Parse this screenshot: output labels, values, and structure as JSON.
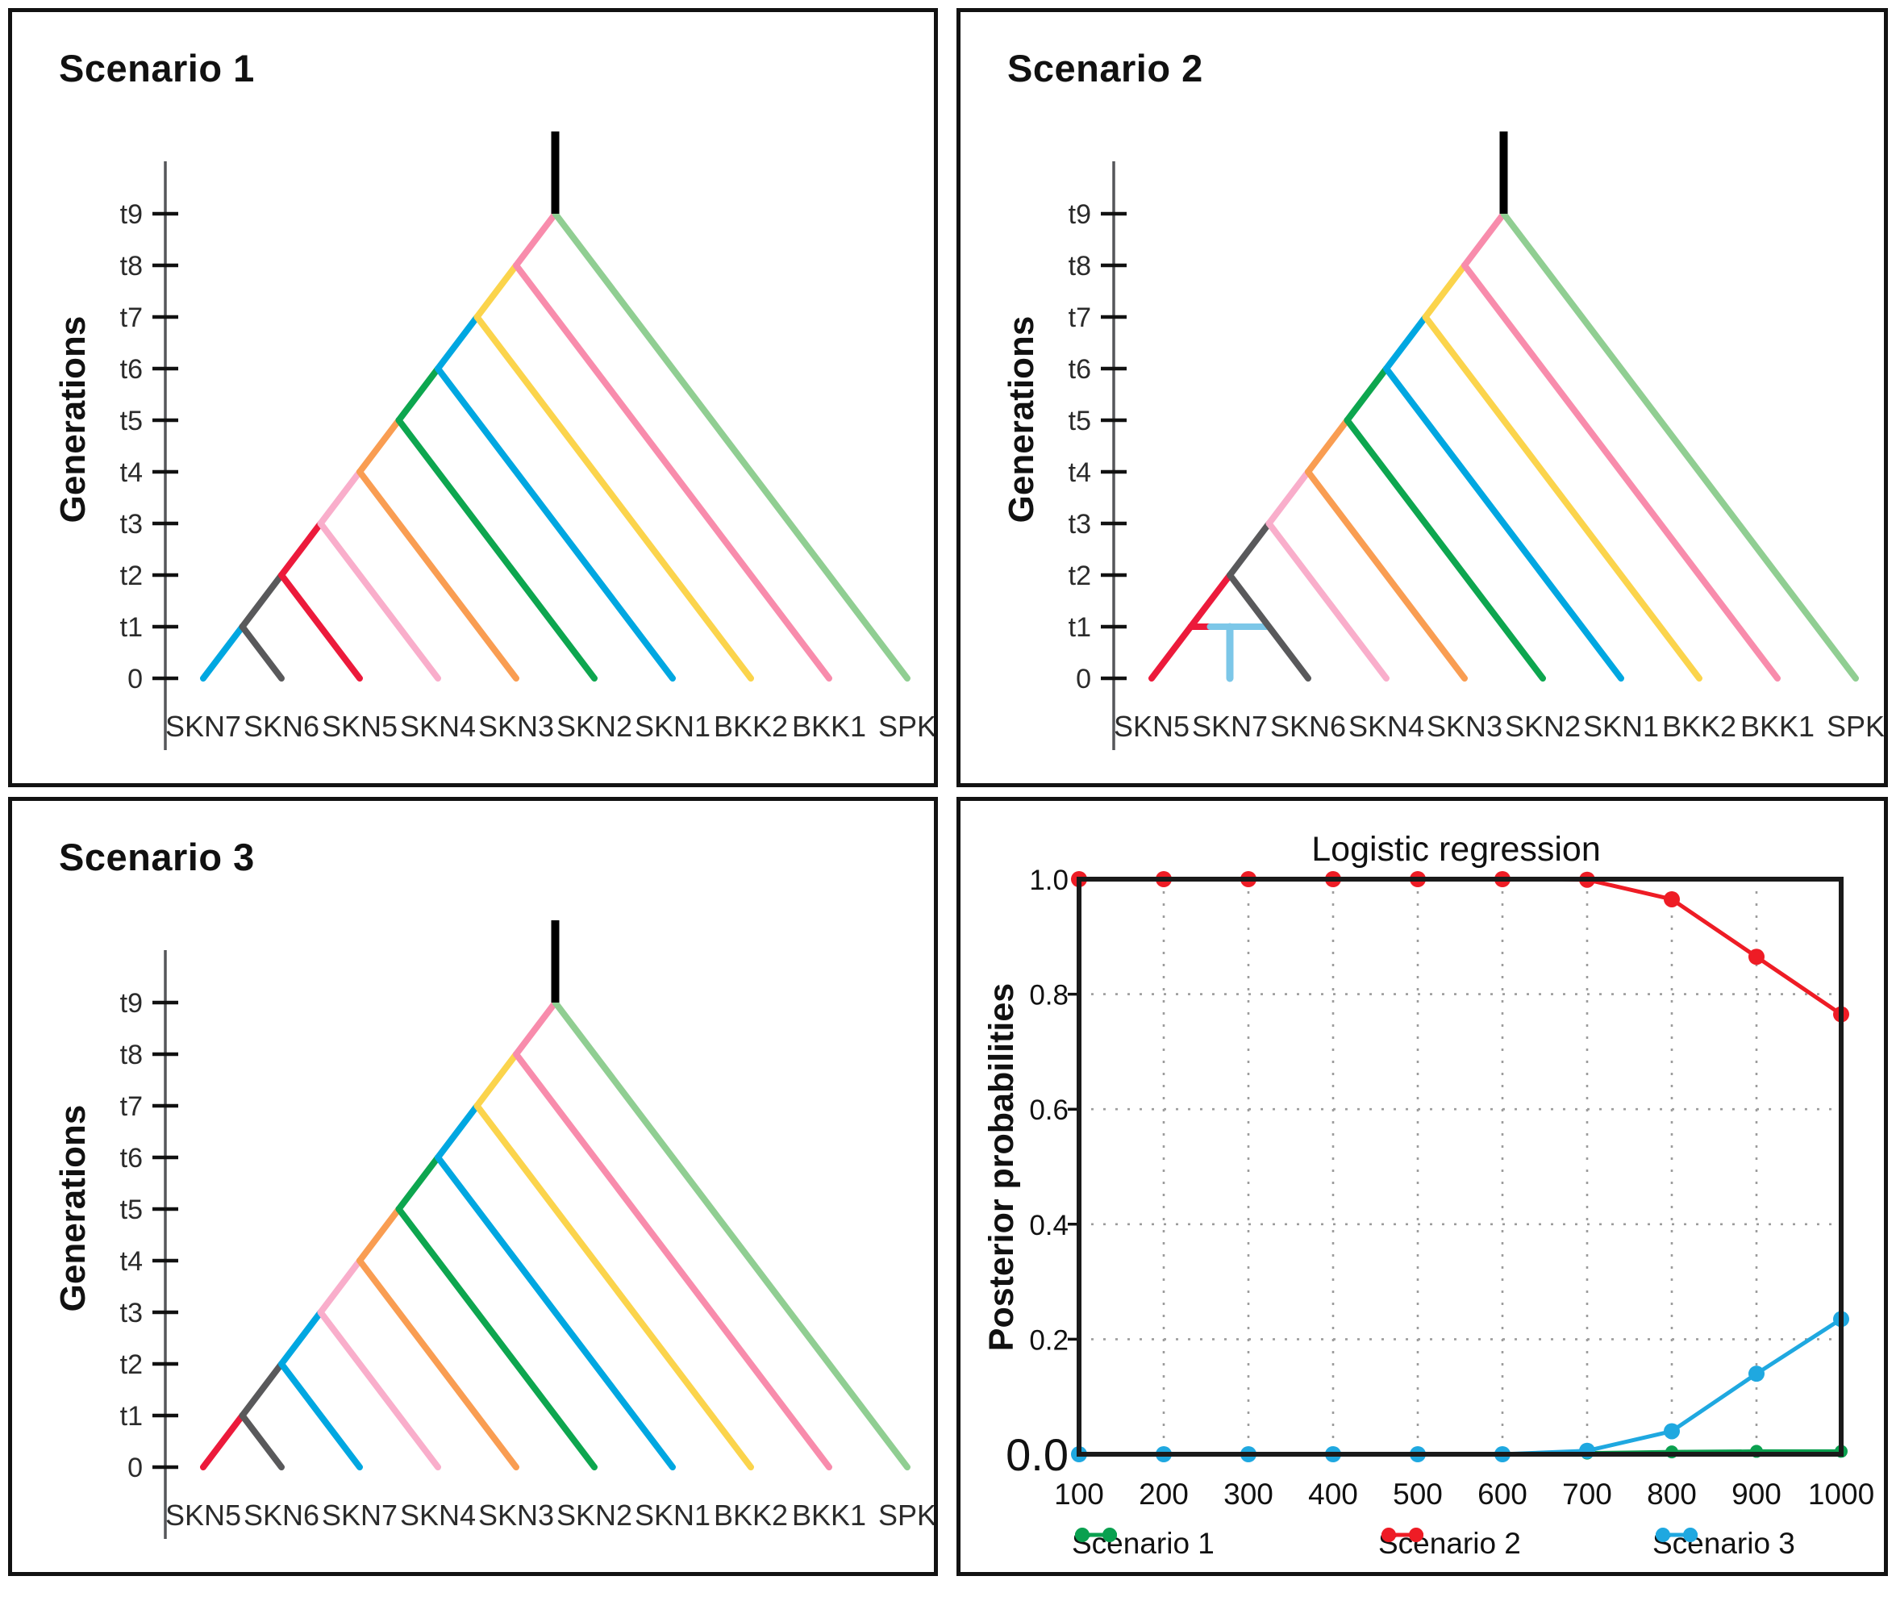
{
  "figure": {
    "background": "#ffffff",
    "description_colors": {
      "axis": "#55565A",
      "tick": "#111111",
      "text": "#2B2B2B",
      "frame": "#1A1A1A",
      "grid": "#9C9C9C",
      "root": "#000000",
      "admixture": "#7CC7E8"
    }
  },
  "population_colors": {
    "SKN7": "#00A7E1",
    "SKN6": "#59595B",
    "SKN5": "#EC1A3B",
    "SKN4": "#F9AECB",
    "SKN3": "#F99D52",
    "SKN2": "#0DA64F",
    "SKN1": "#00A7E1",
    "BKK2": "#FBD44C",
    "BKK1": "#F88CAC",
    "SPK": "#90CE92"
  },
  "tree_panels": [
    {
      "title": "Scenario 1",
      "y_axis_label": "Generations",
      "time_tick_labels": [
        "0",
        "t1",
        "t2",
        "t3",
        "t4",
        "t5",
        "t6",
        "t7",
        "t8",
        "t9"
      ],
      "tip_labels": [
        "SKN7",
        "SKN6",
        "SKN5",
        "SKN4",
        "SKN3",
        "SKN2",
        "SKN1",
        "BKK2",
        "BKK1",
        "SPK"
      ],
      "admixture": null
    },
    {
      "title": "Scenario 2",
      "y_axis_label": "Generations",
      "time_tick_labels": [
        "0",
        "t1",
        "t2",
        "t3",
        "t4",
        "t5",
        "t6",
        "t7",
        "t8",
        "t9"
      ],
      "tip_labels": [
        "SKN5",
        "SKN7",
        "SKN6",
        "SKN4",
        "SKN3",
        "SKN2",
        "SKN1",
        "BKK2",
        "BKK1",
        "SPK"
      ],
      "admixture": {
        "time_label": "t1",
        "child_tip": "SKN7",
        "parent_tips": [
          "SKN5",
          "SKN6"
        ]
      }
    },
    {
      "title": "Scenario 3",
      "y_axis_label": "Generations",
      "time_tick_labels": [
        "0",
        "t1",
        "t2",
        "t3",
        "t4",
        "t5",
        "t6",
        "t7",
        "t8",
        "t9"
      ],
      "tip_labels": [
        "SKN5",
        "SKN6",
        "SKN7",
        "SKN4",
        "SKN3",
        "SKN2",
        "SKN1",
        "BKK2",
        "BKK1",
        "SPK"
      ],
      "admixture": null
    }
  ],
  "regression_panel": {
    "title": "Logistic regression",
    "y_axis_label": "Posterior probabilities",
    "x_tick_labels": [
      "100",
      "200",
      "300",
      "400",
      "500",
      "600",
      "700",
      "800",
      "900",
      "1000"
    ],
    "y_tick_labels": [
      "1.0",
      "0.8",
      "0.6",
      "0.4",
      "0.2",
      "0.0"
    ],
    "legend": [
      {
        "label": "Scenario 1",
        "color": "#0AA04F"
      },
      {
        "label": "Scenario 2",
        "color": "#EE1C25"
      },
      {
        "label": "Scenario 3",
        "color": "#1FA8E0"
      }
    ]
  },
  "chart_data": {
    "type": "line",
    "title": "Logistic regression",
    "xlabel": "",
    "ylabel": "Posterior probabilities",
    "x": [
      100,
      200,
      300,
      400,
      500,
      600,
      700,
      800,
      900,
      1000
    ],
    "series": [
      {
        "name": "Scenario 1",
        "color": "#0AA04F",
        "values": [
          0.0,
          0.0,
          0.0,
          0.0,
          0.0,
          0.0,
          0.002,
          0.004,
          0.005,
          0.005
        ]
      },
      {
        "name": "Scenario 2",
        "color": "#EE1C25",
        "values": [
          1.0,
          1.0,
          1.0,
          1.0,
          1.0,
          1.0,
          0.999,
          0.965,
          0.865,
          0.765
        ]
      },
      {
        "name": "Scenario 3",
        "color": "#1FA8E0",
        "values": [
          0.0,
          0.0,
          0.0,
          0.0,
          0.0,
          0.0,
          0.006,
          0.04,
          0.14,
          0.235
        ]
      }
    ],
    "ylim": [
      0,
      1
    ],
    "xlim": [
      100,
      1000
    ],
    "y_ticks": [
      0.0,
      0.2,
      0.4,
      0.6,
      0.8,
      1.0
    ],
    "x_ticks": [
      100,
      200,
      300,
      400,
      500,
      600,
      700,
      800,
      900,
      1000
    ],
    "grid": "dotted",
    "legend_position": "bottom"
  }
}
